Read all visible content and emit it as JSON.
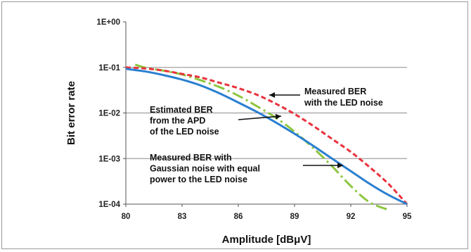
{
  "chart_data": {
    "type": "line",
    "xlabel": "Amplitude [dBμV]",
    "ylabel": "Bit error rate",
    "x_ticks": [
      "80",
      "83",
      "86",
      "89",
      "92",
      "95"
    ],
    "y_ticks": [
      "1E+00",
      "1E-01",
      "1E-02",
      "1E-03",
      "1E-04"
    ],
    "xlim": [
      80,
      95
    ],
    "ylim": [
      0.0001,
      1
    ],
    "y_scale": "log",
    "grid": "horizontal",
    "legend": "none",
    "series": [
      {
        "key": "estimated",
        "style": "solid",
        "color": "#2a7fd0",
        "x": [
          80,
          81,
          82,
          83,
          84,
          85,
          86,
          87,
          88,
          89,
          90,
          91,
          92,
          93,
          94,
          95
        ],
        "y": [
          0.093,
          0.082,
          0.068,
          0.054,
          0.04,
          0.027,
          0.017,
          0.0105,
          0.0062,
          0.0035,
          0.0019,
          0.001,
          0.00053,
          0.00028,
          0.00016,
          0.0001
        ]
      },
      {
        "key": "measured_led",
        "style": "dashed",
        "color": "#e8323c",
        "x": [
          80,
          81,
          82,
          83,
          84,
          85,
          86,
          87,
          88,
          89,
          90,
          91,
          92,
          93,
          94,
          95
        ],
        "y": [
          0.1,
          0.095,
          0.085,
          0.072,
          0.06,
          0.046,
          0.035,
          0.025,
          0.016,
          0.0095,
          0.0052,
          0.0027,
          0.0014,
          0.00065,
          0.00028,
          0.0001
        ]
      },
      {
        "key": "measured_gaussian",
        "style": "dashdot",
        "color": "#8dc63f",
        "x": [
          80.5,
          81,
          82,
          83,
          84,
          85,
          86,
          87,
          88,
          89,
          90,
          91,
          92,
          93,
          94
        ],
        "y": [
          0.115,
          0.1,
          0.085,
          0.07,
          0.052,
          0.037,
          0.024,
          0.014,
          0.0079,
          0.0039,
          0.0017,
          0.00068,
          0.00025,
          0.00011,
          4e-05
        ]
      }
    ],
    "annotations": [
      {
        "key": "measured_led",
        "lines": [
          "Measured BER",
          "with the LED noise"
        ]
      },
      {
        "key": "estimated",
        "lines": [
          "Estimated BER",
          "from the APD",
          "of the LED noise"
        ]
      },
      {
        "key": "measured_gaussian",
        "lines": [
          "Measured BER with",
          "Gaussian noise with equal",
          "power to the LED noise"
        ]
      }
    ]
  }
}
